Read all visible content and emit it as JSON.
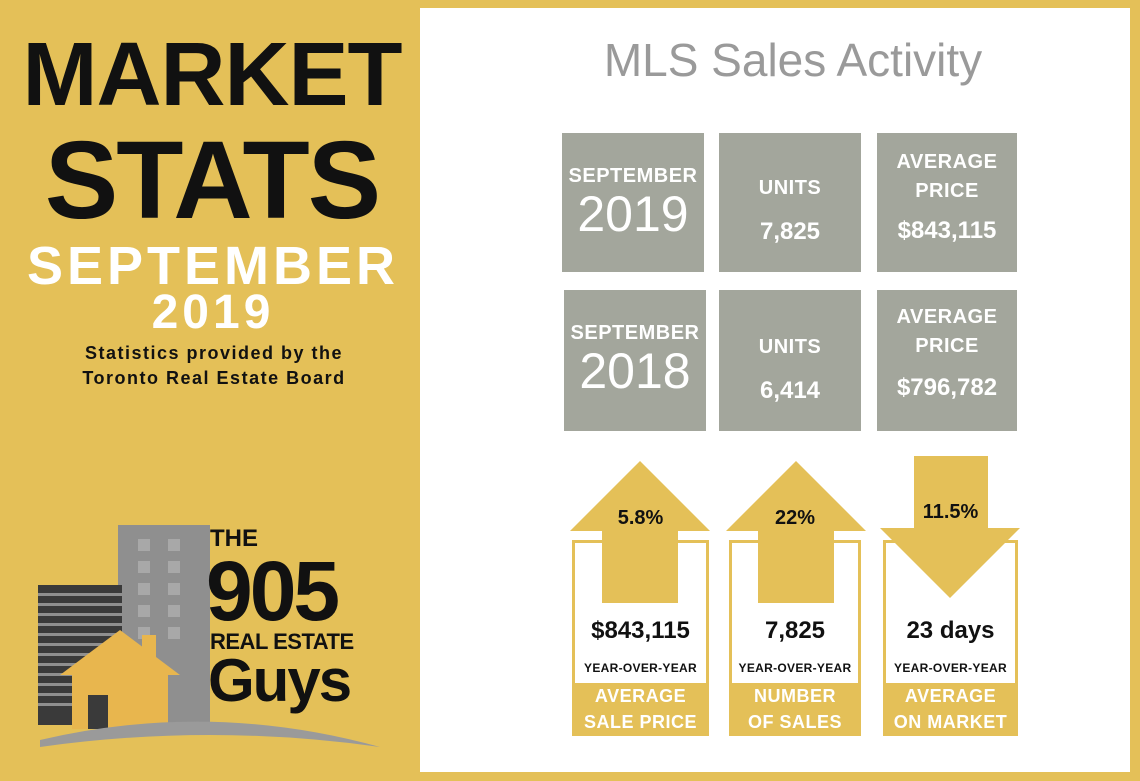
{
  "title": {
    "line1": "MARKET",
    "line2": "STATS",
    "month": "SEPTEMBER",
    "year": "2019",
    "note_line1": "Statistics provided by the",
    "note_line2": "Toronto Real Estate Board"
  },
  "logo": {
    "the": "THE",
    "number": "905",
    "real_estate": "REAL ESTATE",
    "guys": "Guys"
  },
  "heading": "MLS Sales Activity",
  "rows": [
    {
      "period_label": "SEPTEMBER",
      "period_year": "2019",
      "units_label": "UNITS",
      "units_value": "7,825",
      "price_label1": "AVERAGE",
      "price_label2": "PRICE",
      "price_value": "$843,115"
    },
    {
      "period_label": "SEPTEMBER",
      "period_year": "2018",
      "units_label": "UNITS",
      "units_value": "6,414",
      "price_label1": "AVERAGE",
      "price_label2": "PRICE",
      "price_value": "$796,782"
    }
  ],
  "stats": [
    {
      "direction": "up",
      "pct": "5.8%",
      "value": "$843,115",
      "yoy": "YEAR-OVER-YEAR",
      "cap1": "AVERAGE",
      "cap2": "SALE PRICE"
    },
    {
      "direction": "up",
      "pct": "22%",
      "value": "7,825",
      "yoy": "YEAR-OVER-YEAR",
      "cap1": "NUMBER",
      "cap2": "OF SALES"
    },
    {
      "direction": "down",
      "pct": "11.5%",
      "value": "23 days",
      "yoy": "YEAR-OVER-YEAR",
      "cap1": "AVERAGE",
      "cap2": "ON MARKET"
    }
  ],
  "colors": {
    "gold": "#e4c058",
    "grey_box": "#a3a69c",
    "logo_grey": "#8f8f8f",
    "logo_dark": "#3a3a3a"
  }
}
